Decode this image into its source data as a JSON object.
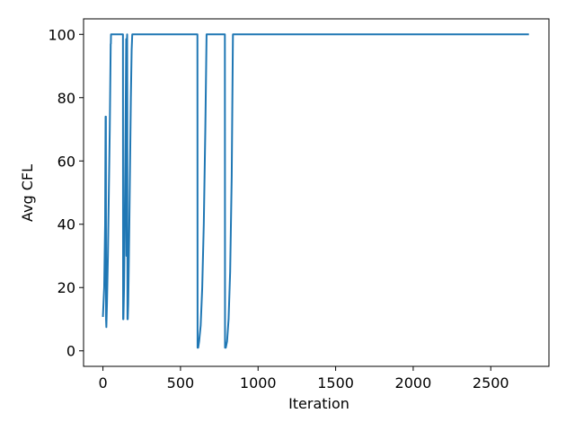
{
  "chart_data": {
    "type": "line",
    "title": "",
    "xlabel": "Iteration",
    "ylabel": "Avg CFL",
    "xlim": [
      -125,
      2875
    ],
    "ylim": [
      -4.9,
      104.9
    ],
    "x_ticks": [
      0,
      500,
      1000,
      1500,
      2000,
      2500
    ],
    "y_ticks": [
      0,
      20,
      40,
      60,
      80,
      100
    ],
    "grid": false,
    "legend": "none",
    "line_color": "#1f77b4",
    "series": [
      {
        "x": [
          0,
          8,
          14,
          17,
          19,
          20,
          22,
          26,
          32,
          38,
          44,
          48,
          50,
          51,
          52,
          54,
          56,
          60,
          70,
          90,
          110,
          128,
          129,
          130,
          132,
          136,
          140,
          144,
          148,
          150,
          151,
          152,
          153,
          155,
          156,
          157,
          158,
          160,
          163,
          166,
          170,
          175,
          180,
          185,
          189,
          190,
          191,
          195,
          250,
          400,
          608,
          609,
          610,
          614,
          620,
          630,
          640,
          650,
          660,
          668,
          669,
          670,
          680,
          720,
          785,
          786,
          787,
          792,
          800,
          810,
          820,
          830,
          838,
          839,
          840,
          850,
          1000,
          1500,
          2000,
          2500,
          2740
        ],
        "y": [
          11,
          20,
          40,
          74,
          74,
          10,
          7.5,
          15,
          30,
          50,
          70,
          88,
          97,
          97,
          100,
          100,
          100,
          100,
          100,
          100,
          100,
          100,
          100,
          10,
          10,
          20,
          38,
          60,
          85,
          98.5,
          98.5,
          30,
          98.5,
          98.5,
          100,
          75,
          10,
          10,
          15,
          25,
          40,
          60,
          80,
          95,
          100,
          100,
          100,
          100,
          100,
          100,
          100,
          100,
          1,
          1,
          3,
          8,
          20,
          40,
          70,
          100,
          100,
          100,
          100,
          100,
          100,
          100,
          1,
          1,
          3,
          10,
          25,
          55,
          100,
          100,
          100,
          100,
          100,
          100,
          100,
          100,
          100
        ]
      }
    ]
  }
}
